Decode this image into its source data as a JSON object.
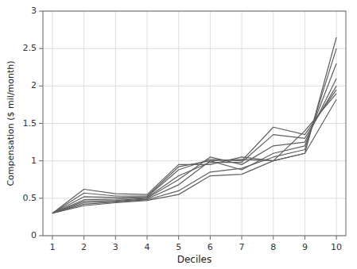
{
  "chart_data": {
    "type": "line",
    "xlabel": "Deciles",
    "ylabel": "Compensation ($ mil/month)",
    "x": [
      1,
      2,
      3,
      4,
      5,
      6,
      7,
      8,
      9,
      10
    ],
    "xlim": [
      0.7,
      10.3
    ],
    "ylim": [
      0,
      3
    ],
    "xticks": [
      1,
      2,
      3,
      4,
      5,
      6,
      7,
      8,
      9,
      10
    ],
    "yticks": [
      0,
      0.5,
      1,
      1.5,
      2,
      2.5,
      3
    ],
    "grid": true,
    "series": [
      {
        "color": "#606060",
        "values": [
          0.3,
          0.4,
          0.44,
          0.47,
          0.55,
          0.8,
          0.82,
          1.0,
          1.1,
          2.65
        ]
      },
      {
        "color": "#606060",
        "values": [
          0.3,
          0.42,
          0.45,
          0.48,
          0.6,
          0.85,
          0.9,
          1.05,
          1.15,
          2.5
        ]
      },
      {
        "color": "#606060",
        "values": [
          0.3,
          0.44,
          0.46,
          0.49,
          0.68,
          1.0,
          0.88,
          1.1,
          1.2,
          2.3
        ]
      },
      {
        "color": "#606060",
        "values": [
          0.3,
          0.46,
          0.47,
          0.5,
          0.75,
          1.05,
          0.95,
          1.2,
          1.25,
          2.1
        ]
      },
      {
        "color": "#606060",
        "values": [
          0.3,
          0.48,
          0.49,
          0.51,
          0.8,
          0.98,
          0.98,
          1.35,
          1.3,
          2.0
        ]
      },
      {
        "color": "#606060",
        "values": [
          0.3,
          0.52,
          0.51,
          0.52,
          0.88,
          1.02,
          1.0,
          1.45,
          1.35,
          1.95
        ]
      },
      {
        "color": "#606060",
        "values": [
          0.3,
          0.57,
          0.53,
          0.53,
          0.92,
          1.0,
          1.02,
          1.0,
          1.4,
          1.9
        ]
      },
      {
        "color": "#606060",
        "values": [
          0.3,
          0.62,
          0.56,
          0.55,
          0.95,
          0.95,
          1.05,
          1.0,
          1.1,
          1.82
        ]
      }
    ]
  }
}
